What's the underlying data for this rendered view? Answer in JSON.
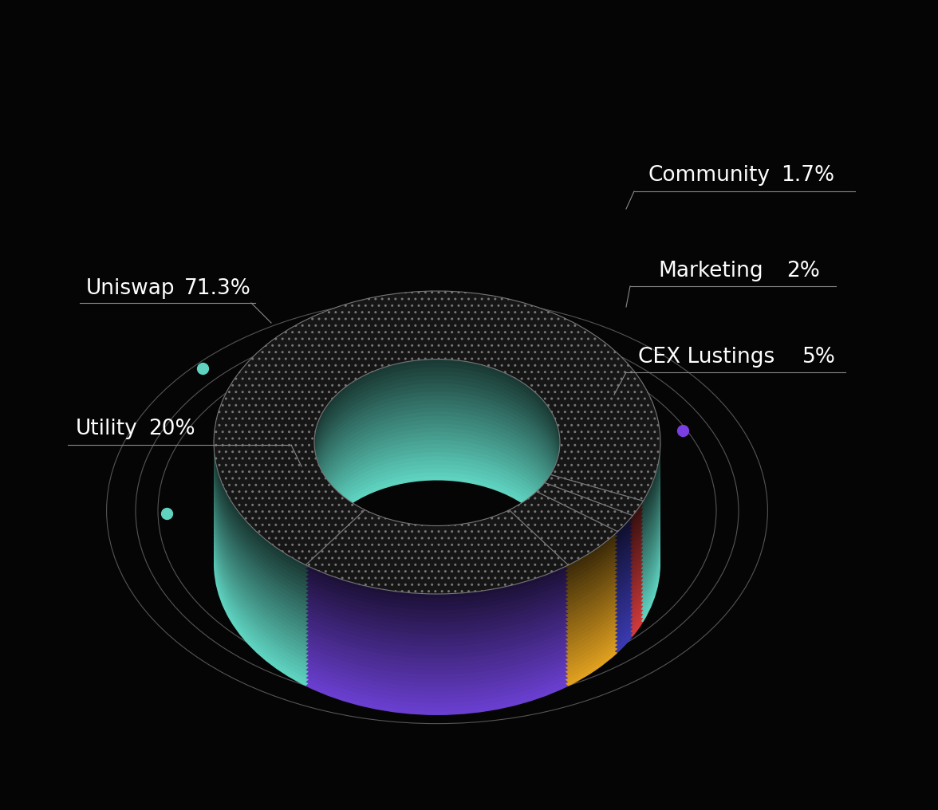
{
  "chart_data": {
    "type": "pie",
    "categories": [
      "Uniswap",
      "Utility",
      "CEX Lustings",
      "Marketing",
      "Community"
    ],
    "values": [
      71.3,
      20,
      5,
      2,
      1.7
    ],
    "value_labels": [
      "71.3%",
      "20%",
      "5%",
      "2%",
      "1.7%"
    ],
    "colors": [
      "#5fd3c0",
      "#6a3fd0",
      "#e0a020",
      "#3a3ab0",
      "#d03a3a"
    ]
  }
}
